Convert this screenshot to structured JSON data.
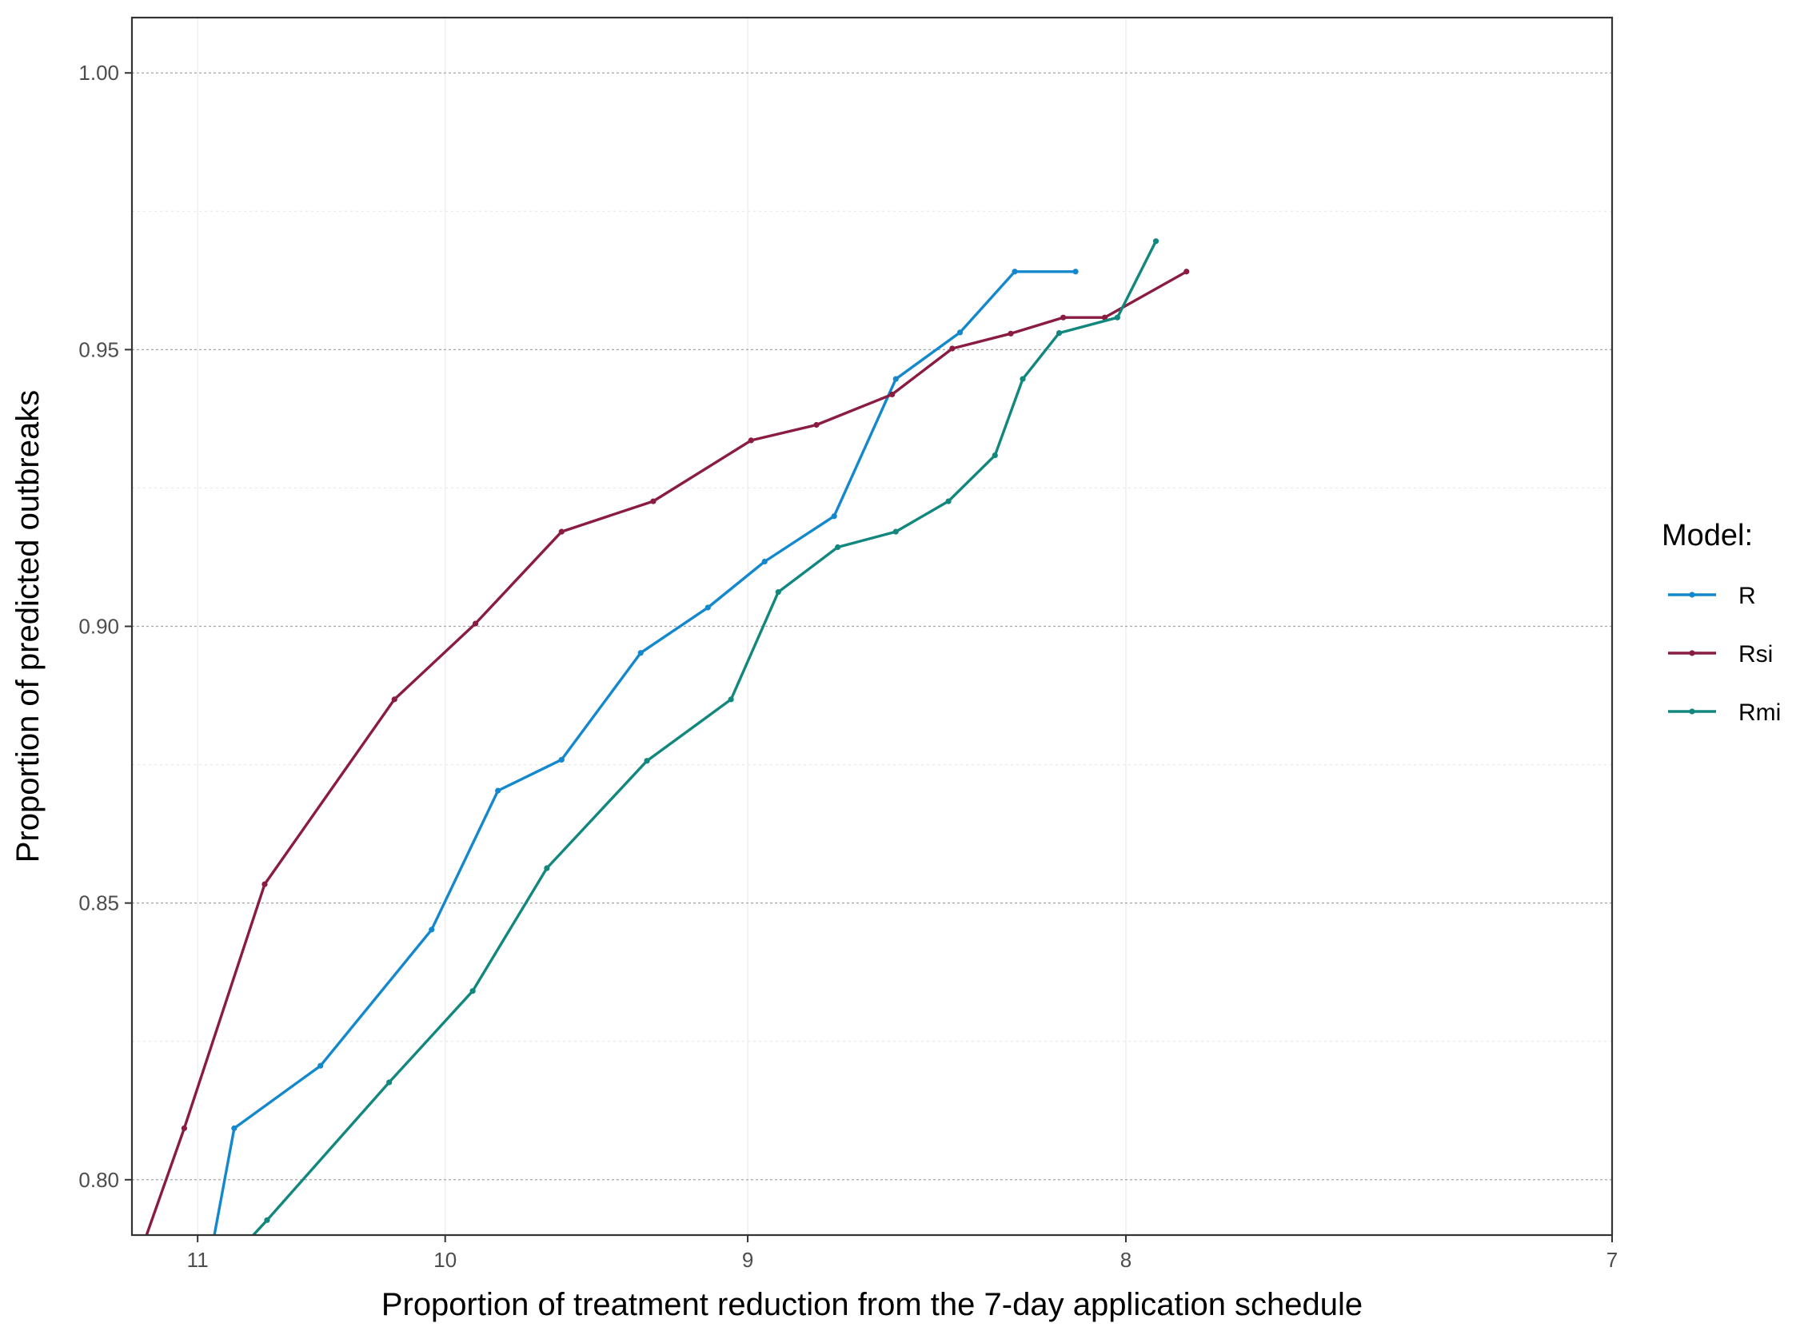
{
  "chart_data": {
    "type": "line",
    "title": "",
    "xlabel": "Proportion of treatment reduction from the 7-day application schedule",
    "ylabel": "Proportion of predicted outbreaks",
    "x_reversed": true,
    "x_scale": "reciprocal",
    "xlim": [
      7,
      11.3
    ],
    "ylim": [
      0.79,
      1.01
    ],
    "x_ticks": [
      "11",
      "10",
      "9",
      "8",
      "7"
    ],
    "x_tick_values": [
      11,
      10,
      9,
      8,
      7
    ],
    "y_ticks": [
      "0.80",
      "0.85",
      "0.90",
      "0.95",
      "1.00"
    ],
    "y_tick_values": [
      0.8,
      0.85,
      0.9,
      0.95,
      1.0
    ],
    "grid": true,
    "legend": {
      "title": "Model:",
      "position": "right"
    },
    "series": [
      {
        "name": "R",
        "color": "#1388cc",
        "points": [
          [
            10.94,
            0.787
          ],
          [
            10.84,
            0.8093
          ],
          [
            10.48,
            0.8206
          ],
          [
            10.05,
            0.8452
          ],
          [
            9.81,
            0.8703
          ],
          [
            9.59,
            0.8759
          ],
          [
            9.33,
            0.8952
          ],
          [
            9.12,
            0.9034
          ],
          [
            8.95,
            0.9117
          ],
          [
            8.75,
            0.9199
          ],
          [
            8.58,
            0.9447
          ],
          [
            8.41,
            0.9531
          ],
          [
            8.27,
            0.9641
          ],
          [
            8.12,
            0.9641
          ]
        ]
      },
      {
        "name": "Rsi",
        "color": "#8a1c40",
        "points": [
          [
            11.25,
            0.788
          ],
          [
            11.06,
            0.8093
          ],
          [
            10.71,
            0.8534
          ],
          [
            10.19,
            0.8868
          ],
          [
            9.89,
            0.9005
          ],
          [
            9.59,
            0.9171
          ],
          [
            9.29,
            0.9226
          ],
          [
            8.99,
            0.9336
          ],
          [
            8.8,
            0.9364
          ],
          [
            8.59,
            0.9419
          ],
          [
            8.43,
            0.9502
          ],
          [
            8.28,
            0.9529
          ],
          [
            8.15,
            0.9558
          ],
          [
            8.05,
            0.9558
          ],
          [
            7.86,
            0.9641
          ]
        ]
      },
      {
        "name": "Rmi",
        "color": "#12877e",
        "points": [
          [
            10.78,
            0.789
          ],
          [
            10.7,
            0.7927
          ],
          [
            10.21,
            0.8176
          ],
          [
            9.9,
            0.8341
          ],
          [
            9.64,
            0.8563
          ],
          [
            9.31,
            0.8757
          ],
          [
            9.05,
            0.8868
          ],
          [
            8.91,
            0.9062
          ],
          [
            8.74,
            0.9143
          ],
          [
            8.58,
            0.9171
          ],
          [
            8.44,
            0.9226
          ],
          [
            8.32,
            0.9309
          ],
          [
            8.25,
            0.9447
          ],
          [
            8.16,
            0.953
          ],
          [
            8.02,
            0.9558
          ],
          [
            7.93,
            0.9696
          ]
        ]
      }
    ]
  }
}
